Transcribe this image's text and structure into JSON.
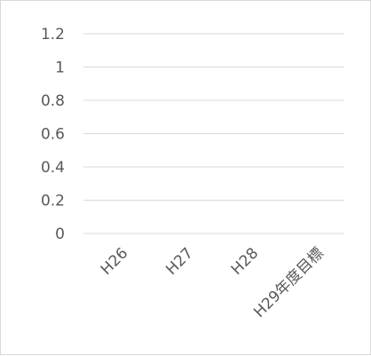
{
  "chart_data": {
    "type": "bar",
    "title": "",
    "xlabel": "",
    "ylabel": "",
    "categories": [
      "H26",
      "H27",
      "H28",
      "H29年度目標"
    ],
    "series": [
      {
        "values": [
          0,
          0,
          0,
          0
        ]
      }
    ],
    "ylim": [
      0,
      1.2
    ],
    "yticks": [
      "0",
      "0.2",
      "0.4",
      "0.6",
      "0.8",
      "1",
      "1.2"
    ],
    "grid": true,
    "legend": "none",
    "colors": {
      "grid": "#d9d9d9",
      "text": "#595959",
      "border": "#d9d9d9"
    }
  }
}
